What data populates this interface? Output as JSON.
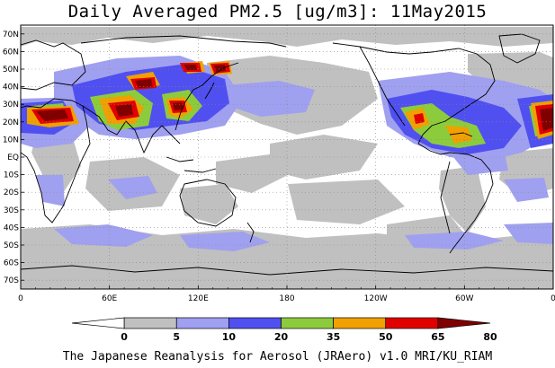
{
  "title": "Daily Averaged PM2.5 [ug/m3]: 11May2015",
  "footer": "The Japanese Reanalysis for Aerosol (JRAero) v1.0 MRI/KU_RIAM",
  "map": {
    "projection": "cylindrical equidistant, 0°E centered at left edge, 0 to 360",
    "lat_range": [
      -75,
      75
    ],
    "lon_range": [
      0,
      360
    ],
    "lat_labels": [
      {
        "lat": 70,
        "text": "70N"
      },
      {
        "lat": 60,
        "text": "60N"
      },
      {
        "lat": 50,
        "text": "50N"
      },
      {
        "lat": 40,
        "text": "40N"
      },
      {
        "lat": 30,
        "text": "30N"
      },
      {
        "lat": 20,
        "text": "20N"
      },
      {
        "lat": 10,
        "text": "10N"
      },
      {
        "lat": 0,
        "text": "EQ"
      },
      {
        "lat": -10,
        "text": "10S"
      },
      {
        "lat": -20,
        "text": "20S"
      },
      {
        "lat": -30,
        "text": "30S"
      },
      {
        "lat": -40,
        "text": "40S"
      },
      {
        "lat": -50,
        "text": "50S"
      },
      {
        "lat": -60,
        "text": "60S"
      },
      {
        "lat": -70,
        "text": "70S"
      }
    ],
    "lon_labels": [
      {
        "lon": 0,
        "text": "0"
      },
      {
        "lon": 60,
        "text": "60E"
      },
      {
        "lon": 120,
        "text": "120E"
      },
      {
        "lon": 180,
        "text": "180"
      },
      {
        "lon": 240,
        "text": "120W"
      },
      {
        "lon": 300,
        "text": "60W"
      },
      {
        "lon": 360,
        "text": "0"
      }
    ]
  },
  "colorbar": {
    "levels": [
      "0",
      "5",
      "10",
      "20",
      "35",
      "50",
      "65",
      "80"
    ],
    "colors": [
      "#ffffff",
      "#c0c0c0",
      "#a0a0f0",
      "#5050f0",
      "#8ccc3c",
      "#f0a000",
      "#e00000",
      "#800000"
    ]
  },
  "colors": {
    "gray": "#c0c0c0",
    "light_blue": "#a0a0f0",
    "blue": "#5050f0",
    "green": "#8ccc3c",
    "orange": "#f0a000",
    "red": "#e00000",
    "dark_red": "#800000"
  }
}
